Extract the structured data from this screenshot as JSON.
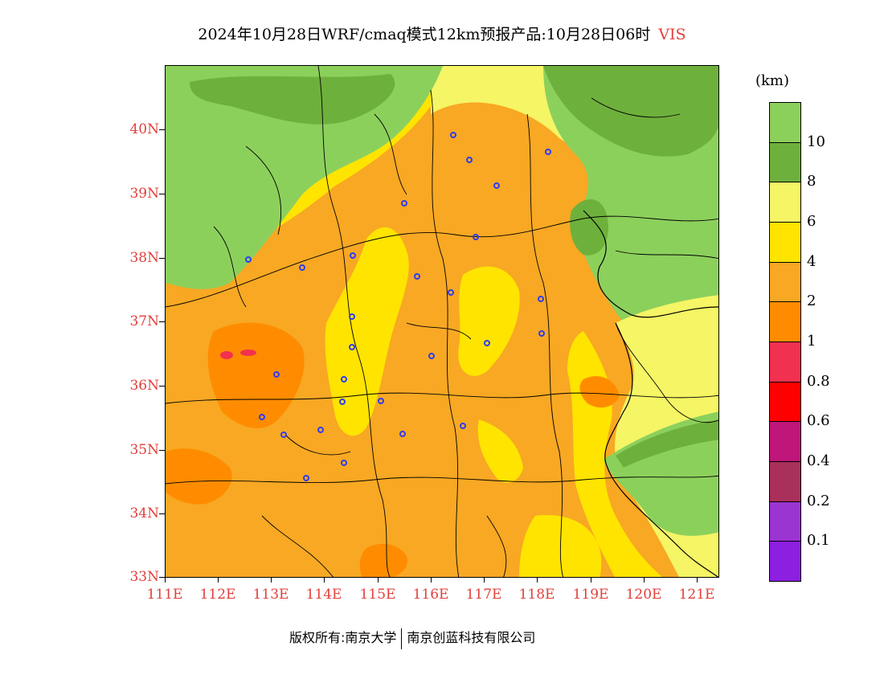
{
  "title": "2024年10月28日WRF/cmaq模式12km预报产品:10月28日06时",
  "variable": "VIS",
  "unit": "(km)",
  "lat_labels": [
    "40N",
    "39N",
    "38N",
    "37N",
    "36N",
    "35N",
    "34N",
    "33N"
  ],
  "lon_labels": [
    "111E",
    "112E",
    "113E",
    "114E",
    "115E",
    "116E",
    "117E",
    "118E",
    "119E",
    "120E",
    "121E"
  ],
  "legend": {
    "colors": [
      "#8c1fe0",
      "#9a35d2",
      "#a8305a",
      "#c0157a",
      "#ff0000",
      "#f2304f",
      "#ff8c00",
      "#f8a823",
      "#ffe400",
      "#f5f565",
      "#6eb03c",
      "#8cd05c"
    ],
    "labels": [
      "0.1",
      "0.2",
      "0.4",
      "0.6",
      "0.8",
      "1",
      "2",
      "4",
      "6",
      "8",
      "10"
    ]
  },
  "footer": {
    "left": "版权所有:南京大学",
    "right": "南京创蓝科技有限公司"
  },
  "colors": {
    "green_light": "#8cd05c",
    "green_dark": "#6eb03c",
    "yellow_light": "#f5f565",
    "yellow": "#ffe400",
    "orange_light": "#f8a823",
    "orange": "#ff8c00",
    "pink": "#f2304f",
    "station": "#2e3cf0"
  },
  "map_extent": {
    "lon": [
      111,
      121.4
    ],
    "lat": [
      33,
      41
    ]
  }
}
